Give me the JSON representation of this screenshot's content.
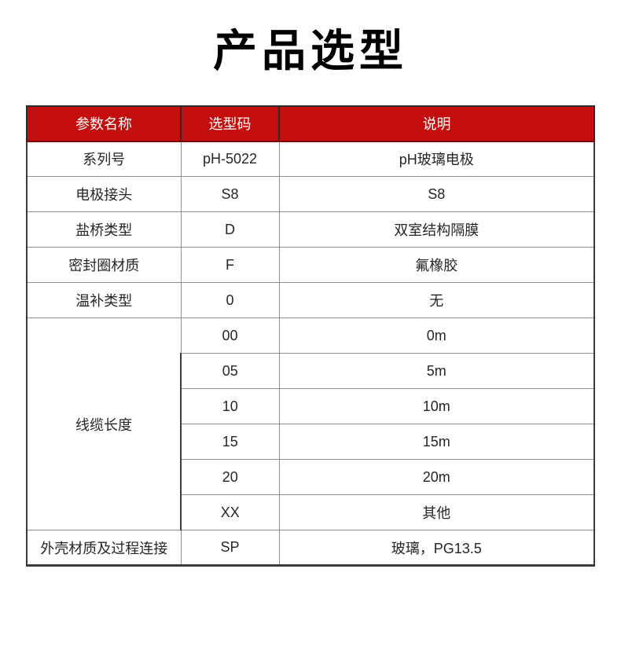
{
  "page": {
    "title": "产品选型"
  },
  "colors": {
    "header_bg": "#c40e0e",
    "header_text": "#ffffff",
    "grid_line": "#8f8f8f",
    "outer_border": "#3a3a3a",
    "body_text": "#262626",
    "title_text": "#000000"
  },
  "table": {
    "columns": [
      "参数名称",
      "选型码",
      "说明"
    ],
    "rows": [
      {
        "name": "系列号",
        "code": "pH-5022",
        "desc": "pH玻璃电极"
      },
      {
        "name": "电极接头",
        "code": "S8",
        "desc": "S8"
      },
      {
        "name": "盐桥类型",
        "code": "D",
        "desc": "双室结构隔膜"
      },
      {
        "name": "密封圈材质",
        "code": "F",
        "desc": "氟橡胶"
      },
      {
        "name": "温补类型",
        "code": "0",
        "desc": "无"
      },
      {
        "name": "线缆长度",
        "options": [
          {
            "code": "00",
            "desc": "0m"
          },
          {
            "code": "05",
            "desc": "5m"
          },
          {
            "code": "10",
            "desc": "10m"
          },
          {
            "code": "15",
            "desc": "15m"
          },
          {
            "code": "20",
            "desc": "20m"
          },
          {
            "code": "XX",
            "desc": "其他"
          }
        ]
      },
      {
        "name": "外壳材质及过程连接",
        "code": "SP",
        "desc": "玻璃，PG13.5"
      }
    ]
  }
}
